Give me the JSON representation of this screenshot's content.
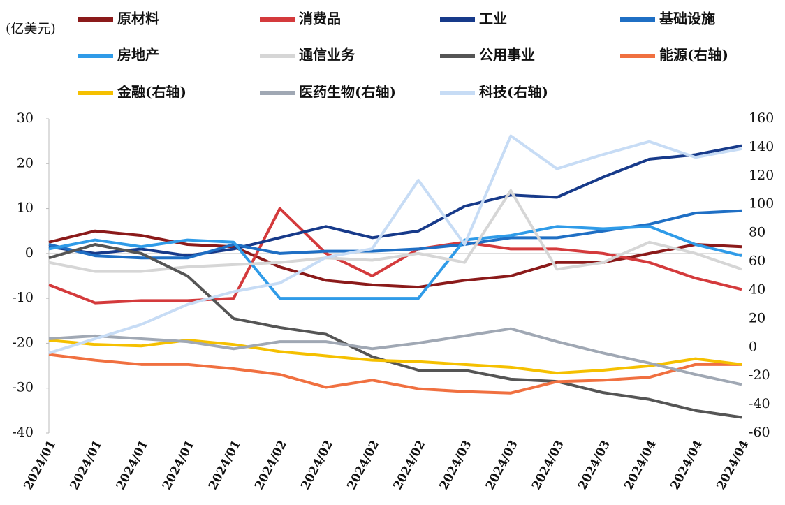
{
  "chart_data": {
    "type": "line",
    "y_label": "(亿美元)",
    "categories": [
      "2024/01",
      "2024/01",
      "2024/01",
      "2024/01",
      "2024/01",
      "2024/02",
      "2024/02",
      "2024/02",
      "2024/02",
      "2024/03",
      "2024/03",
      "2024/03",
      "2024/03",
      "2024/04",
      "2024/04",
      "2024/04"
    ],
    "ylim": [
      -40,
      30
    ],
    "yticks": [
      -40,
      -30,
      -20,
      -10,
      0,
      10,
      20,
      30
    ],
    "y2lim": [
      -60,
      160
    ],
    "y2ticks": [
      -60,
      -40,
      -20,
      0,
      20,
      40,
      60,
      80,
      100,
      120,
      140,
      160
    ],
    "series": [
      {
        "name": "原材料",
        "color": "#8b1a1a",
        "values": [
          2.5,
          5,
          4,
          2,
          1.5,
          -3,
          -6,
          -7,
          -7.5,
          -6,
          -5,
          -2,
          -2,
          0,
          2,
          1.5
        ]
      },
      {
        "name": "消费品",
        "color": "#d43a3c",
        "values": [
          -7,
          -11,
          -10.5,
          -10.5,
          -10,
          10,
          0,
          -5,
          1,
          2.5,
          1,
          1,
          0,
          -2,
          -5.5,
          -8
        ]
      },
      {
        "name": "工业",
        "color": "#173a8a",
        "values": [
          1.5,
          0,
          1,
          -0.5,
          1,
          3.5,
          6,
          3.5,
          5,
          10.5,
          13,
          12.5,
          17,
          21,
          22,
          24
        ]
      },
      {
        "name": "基础设施",
        "color": "#1f6fc4",
        "values": [
          2,
          -0.5,
          -1,
          -1,
          2,
          0,
          0.5,
          0.5,
          1,
          2,
          3.5,
          3.5,
          5,
          6.5,
          9,
          9.5
        ]
      },
      {
        "name": "房地产",
        "color": "#2f9be8",
        "values": [
          1,
          3,
          1.5,
          3,
          2.5,
          -10,
          -10,
          -10,
          -10,
          3,
          4,
          6,
          5.5,
          6,
          2,
          -0.5
        ]
      },
      {
        "name": "通信业务",
        "color": "#d6d6d6",
        "values": [
          -2,
          -4,
          -4,
          -3,
          -2.5,
          -2,
          -1,
          -1.5,
          0,
          -2,
          14,
          -3.5,
          -2,
          2.5,
          0,
          -3.5
        ]
      },
      {
        "name": "公用事业",
        "color": "#555555",
        "values": [
          -1,
          2,
          0,
          -5,
          -14.5,
          -16.5,
          -18,
          -23,
          -26,
          -26,
          -28,
          -28.5,
          -31,
          -32.5,
          -35,
          -36.5
        ]
      },
      {
        "name": "能源(右轴)",
        "color": "#f07040",
        "axis": "y2",
        "values": [
          -5,
          -9,
          -12,
          -12,
          -15,
          -19,
          -28,
          -23,
          -29,
          -31,
          -32,
          -24,
          -23,
          -21,
          -12,
          -12
        ]
      },
      {
        "name": "金融(右轴)",
        "color": "#f5c000",
        "axis": "y2",
        "values": [
          5,
          2,
          1,
          5,
          2,
          -3,
          -6,
          -9,
          -10,
          -12,
          -14,
          -18,
          -16,
          -13,
          -8,
          -12
        ]
      },
      {
        "name": "医药生物(右轴)",
        "color": "#a0a8b4",
        "axis": "y2",
        "values": [
          6,
          8,
          6,
          4,
          -1,
          4,
          4,
          -1,
          3,
          8,
          13,
          4,
          -4,
          -11,
          -19,
          -26
        ]
      },
      {
        "name": "科技(右轴)",
        "color": "#c7dcf5",
        "axis": "y2",
        "values": [
          -4,
          6,
          16,
          30,
          39,
          45,
          63,
          69,
          117,
          72,
          148,
          125,
          135,
          144,
          133,
          139
        ]
      }
    ]
  }
}
